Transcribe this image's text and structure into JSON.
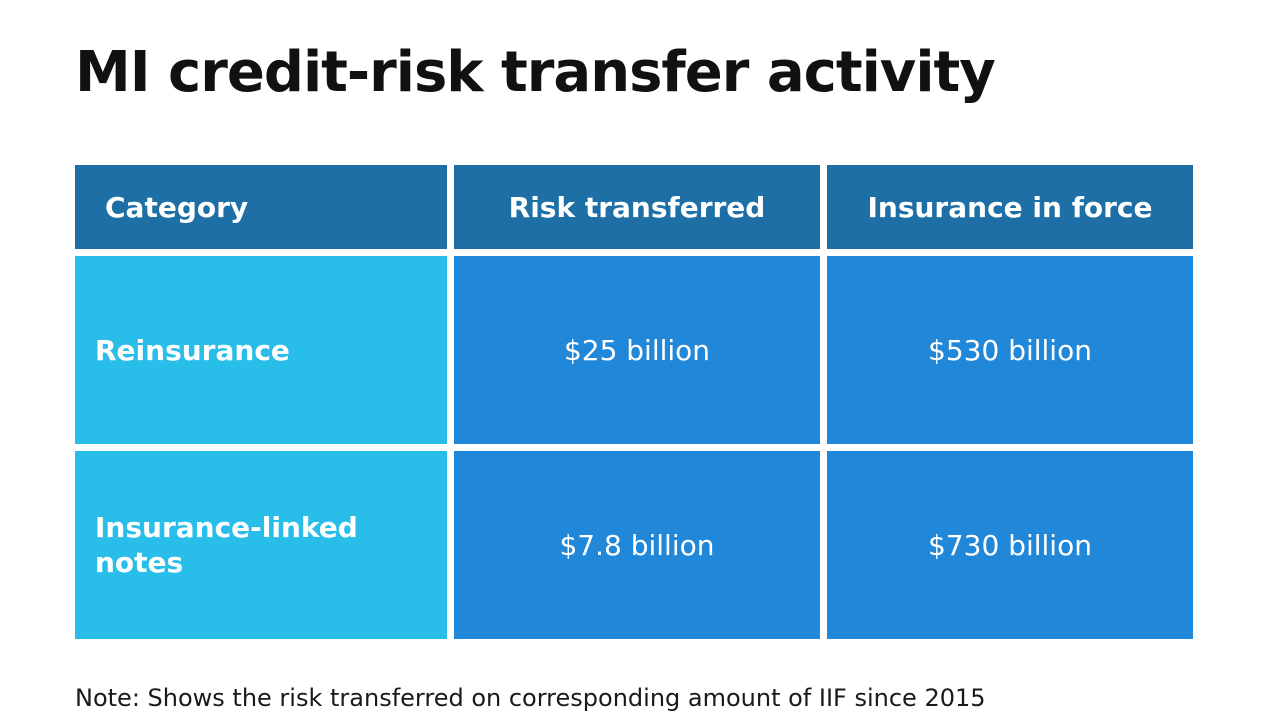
{
  "page": {
    "title": "MI credit-risk transfer activity",
    "note": "Note: Shows the risk transferred on corresponding amount of IIF since 2015"
  },
  "table": {
    "headers": [
      "Category",
      "Risk transferred",
      "Insurance in force"
    ],
    "rows": [
      [
        "Reinsurance",
        "$25 billion",
        "$530 billion"
      ],
      [
        "Insurance-linked notes",
        "$7.8 billion",
        "$730 billion"
      ]
    ]
  },
  "colors": {
    "header_bg": "#1e6fa5",
    "category_bg": "#29bee9",
    "value_bg": "#2187d9",
    "cell_text": "#ffffff",
    "title_text": "#111111",
    "note_text": "#1a1a1a",
    "background": "#ffffff"
  },
  "chart_data": {
    "type": "table",
    "title": "MI credit-risk transfer activity",
    "columns": [
      "Category",
      "Risk transferred",
      "Insurance in force"
    ],
    "rows": [
      [
        "Reinsurance",
        "$25 billion",
        "$530 billion"
      ],
      [
        "Insurance-linked notes",
        "$7.8 billion",
        "$730 billion"
      ]
    ],
    "values_numeric": {
      "risk_transferred_billions_usd": [
        25,
        7.8
      ],
      "insurance_in_force_billions_usd": [
        530,
        730
      ]
    },
    "note": "Note: Shows the risk transferred on corresponding amount of IIF since 2015",
    "legend_position": "none",
    "grid": false
  }
}
